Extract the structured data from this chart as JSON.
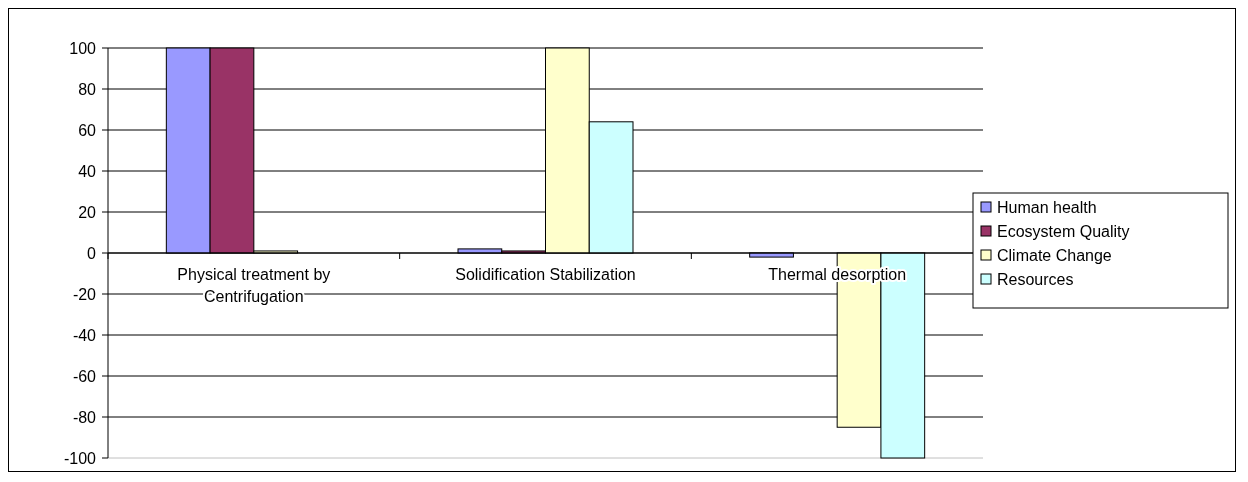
{
  "chart_data": {
    "type": "bar",
    "categories": [
      "Physical treatment by Centrifugation",
      "Solidification Stabilization",
      "Thermal desorption"
    ],
    "series": [
      {
        "name": "Human health",
        "color": "#9999ff",
        "values": [
          100,
          2,
          -2
        ]
      },
      {
        "name": "Ecosystem Quality",
        "color": "#993366",
        "values": [
          100,
          1,
          0
        ]
      },
      {
        "name": "Climate Change",
        "color": "#ffffcc",
        "values": [
          1,
          100,
          -85
        ]
      },
      {
        "name": "Resources",
        "color": "#ccffff",
        "values": [
          0,
          64,
          -100
        ]
      }
    ],
    "ylim": [
      -100,
      100
    ],
    "yticks": [
      -100,
      -80,
      -60,
      -40,
      -20,
      0,
      20,
      40,
      60,
      80,
      100
    ],
    "grid": "y",
    "legend": "right"
  }
}
